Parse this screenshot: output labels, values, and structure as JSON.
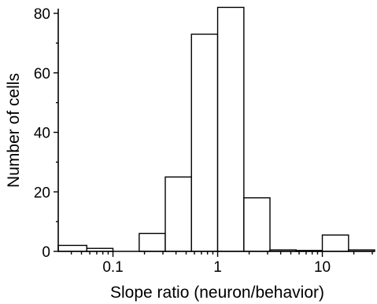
{
  "chart_data": {
    "type": "bar",
    "xlabel": "Slope ratio (neuron/behavior)",
    "ylabel": "Number of cells",
    "x_scale": "log",
    "xlim": [
      0.03,
      31.6
    ],
    "ylim": [
      0,
      80
    ],
    "x_ticks": [
      {
        "value": 0.1,
        "label": "0.1"
      },
      {
        "value": 1,
        "label": "1"
      },
      {
        "value": 10,
        "label": "10"
      }
    ],
    "y_ticks": [
      0,
      20,
      40,
      60,
      80
    ],
    "bins": [
      {
        "x0": 0.03,
        "x1": 0.0562,
        "count": 2
      },
      {
        "x0": 0.0562,
        "x1": 0.1,
        "count": 1
      },
      {
        "x0": 0.1,
        "x1": 0.178,
        "count": 0
      },
      {
        "x0": 0.178,
        "x1": 0.316,
        "count": 6
      },
      {
        "x0": 0.316,
        "x1": 0.562,
        "count": 25
      },
      {
        "x0": 0.562,
        "x1": 1.0,
        "count": 73
      },
      {
        "x0": 1.0,
        "x1": 1.78,
        "count": 82
      },
      {
        "x0": 1.78,
        "x1": 3.16,
        "count": 18
      },
      {
        "x0": 3.16,
        "x1": 5.62,
        "count": 0.5
      },
      {
        "x0": 5.62,
        "x1": 10.0,
        "count": 0.3
      },
      {
        "x0": 10.0,
        "x1": 17.8,
        "count": 5.5
      },
      {
        "x0": 17.8,
        "x1": 31.6,
        "count": 0.5
      }
    ]
  }
}
